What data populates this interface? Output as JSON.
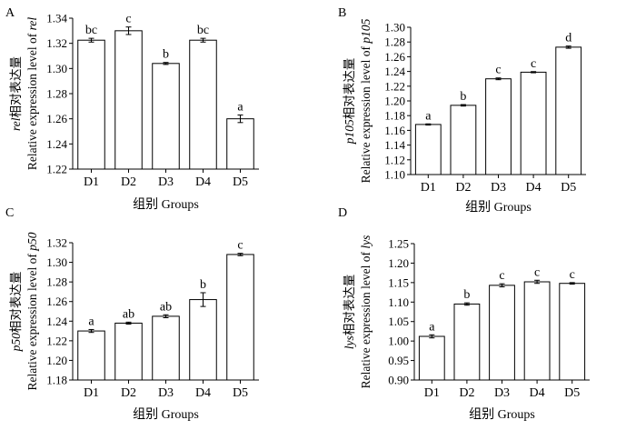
{
  "chart_data": [
    {
      "type": "bar",
      "panel": "A",
      "categories": [
        "D1",
        "D2",
        "D3",
        "D4",
        "D5"
      ],
      "values": [
        1.3225,
        1.33,
        1.304,
        1.3225,
        1.26
      ],
      "errors": [
        0.0015,
        0.003,
        0.0008,
        0.0015,
        0.003
      ],
      "significance": [
        "bc",
        "c",
        "b",
        "bc",
        "a"
      ],
      "xlabel": "组别 Groups",
      "ylabel_line1": {
        "prefix": "rel",
        "suffix": "相对表达量"
      },
      "ylabel_line2": {
        "prefix": "Relative expression level of ",
        "suffix": "rel"
      },
      "ylim": [
        1.22,
        1.34
      ],
      "yticks": [
        "1.22",
        "1.24",
        "1.26",
        "1.28",
        "1.30",
        "1.32",
        "1.34"
      ]
    },
    {
      "type": "bar",
      "panel": "B",
      "categories": [
        "D1",
        "D2",
        "D3",
        "D4",
        "D5"
      ],
      "values": [
        1.168,
        1.194,
        1.23,
        1.239,
        1.273
      ],
      "errors": [
        0.0008,
        0.001,
        0.0012,
        0.0008,
        0.0015
      ],
      "significance": [
        "a",
        "b",
        "c",
        "c",
        "d"
      ],
      "xlabel": "组别 Groups",
      "ylabel_line1": {
        "prefix": "p105",
        "suffix": "相对表达量"
      },
      "ylabel_line2": {
        "prefix": "Relative expression level of ",
        "suffix": "p105"
      },
      "ylim": [
        1.1,
        1.3
      ],
      "yticks": [
        "1.10",
        "1.12",
        "1.14",
        "1.16",
        "1.18",
        "1.20",
        "1.22",
        "1.24",
        "1.26",
        "1.28",
        "1.30"
      ]
    },
    {
      "type": "bar",
      "panel": "C",
      "categories": [
        "D1",
        "D2",
        "D3",
        "D4",
        "D5"
      ],
      "values": [
        1.23,
        1.238,
        1.245,
        1.262,
        1.308
      ],
      "errors": [
        0.0015,
        0.001,
        0.0015,
        0.007,
        0.0012
      ],
      "significance": [
        "a",
        "ab",
        "ab",
        "b",
        "c"
      ],
      "xlabel": "组别 Groups",
      "ylabel_line1": {
        "prefix": "p50",
        "suffix": "相对表达量"
      },
      "ylabel_line2": {
        "prefix": "Relative expression level of ",
        "suffix": "p50"
      },
      "ylim": [
        1.18,
        1.32
      ],
      "yticks": [
        "1.18",
        "1.20",
        "1.22",
        "1.24",
        "1.26",
        "1.28",
        "1.30",
        "1.32"
      ]
    },
    {
      "type": "bar",
      "panel": "D",
      "categories": [
        "D1",
        "D2",
        "D3",
        "D4",
        "D5"
      ],
      "values": [
        1.012,
        1.095,
        1.143,
        1.152,
        1.148
      ],
      "errors": [
        0.004,
        0.003,
        0.004,
        0.004,
        0.002
      ],
      "significance": [
        "a",
        "b",
        "c",
        "c",
        "c"
      ],
      "xlabel": "组别 Groups",
      "ylabel_line1": {
        "prefix": "lys",
        "suffix": "相对表达量"
      },
      "ylabel_line2": {
        "prefix": "Relative expression level of ",
        "suffix": "lys"
      },
      "ylim": [
        0.9,
        1.25
      ],
      "yticks": [
        "0.90",
        "0.95",
        "1.00",
        "1.05",
        "1.10",
        "1.15",
        "1.20",
        "1.25"
      ]
    }
  ]
}
